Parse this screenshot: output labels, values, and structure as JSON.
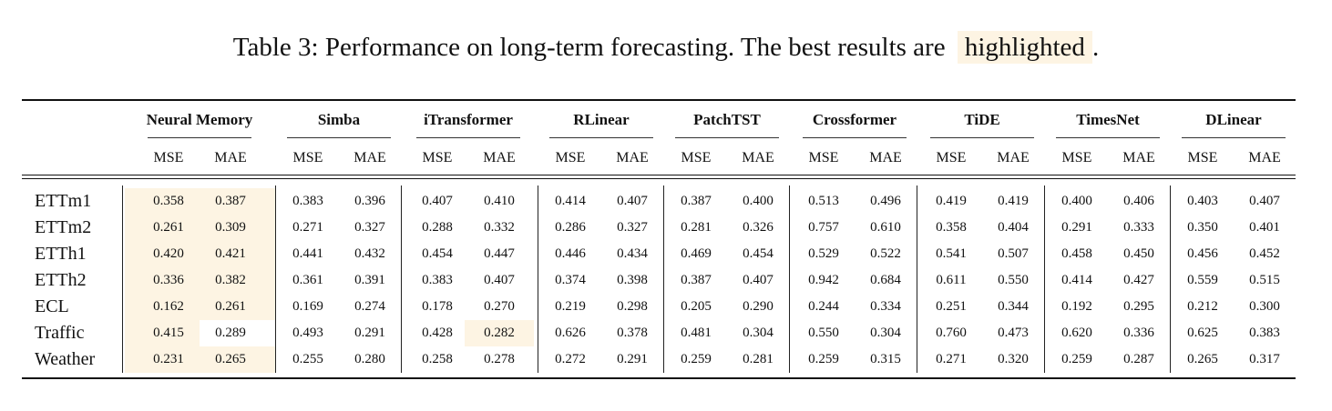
{
  "caption": {
    "text": "Table 3: Performance on long-term forecasting. The best results are",
    "highlight_word": "highlighted",
    "end": "."
  },
  "colors": {
    "highlight": "#fdf4e3",
    "text": "#111111"
  },
  "metrics": [
    "MSE",
    "MAE"
  ],
  "models": [
    "Neural Memory",
    "Simba",
    "iTransformer",
    "RLinear",
    "PatchTST",
    "Crossformer",
    "TiDE",
    "TimesNet",
    "DLinear"
  ],
  "datasets": [
    "ETTm1",
    "ETTm2",
    "ETTh1",
    "ETTh2",
    "ECL",
    "Traffic",
    "Weather"
  ],
  "values": [
    [
      "0.358",
      "0.387",
      "0.383",
      "0.396",
      "0.407",
      "0.410",
      "0.414",
      "0.407",
      "0.387",
      "0.400",
      "0.513",
      "0.496",
      "0.419",
      "0.419",
      "0.400",
      "0.406",
      "0.403",
      "0.407"
    ],
    [
      "0.261",
      "0.309",
      "0.271",
      "0.327",
      "0.288",
      "0.332",
      "0.286",
      "0.327",
      "0.281",
      "0.326",
      "0.757",
      "0.610",
      "0.358",
      "0.404",
      "0.291",
      "0.333",
      "0.350",
      "0.401"
    ],
    [
      "0.420",
      "0.421",
      "0.441",
      "0.432",
      "0.454",
      "0.447",
      "0.446",
      "0.434",
      "0.469",
      "0.454",
      "0.529",
      "0.522",
      "0.541",
      "0.507",
      "0.458",
      "0.450",
      "0.456",
      "0.452"
    ],
    [
      "0.336",
      "0.382",
      "0.361",
      "0.391",
      "0.383",
      "0.407",
      "0.374",
      "0.398",
      "0.387",
      "0.407",
      "0.942",
      "0.684",
      "0.611",
      "0.550",
      "0.414",
      "0.427",
      "0.559",
      "0.515"
    ],
    [
      "0.162",
      "0.261",
      "0.169",
      "0.274",
      "0.178",
      "0.270",
      "0.219",
      "0.298",
      "0.205",
      "0.290",
      "0.244",
      "0.334",
      "0.251",
      "0.344",
      "0.192",
      "0.295",
      "0.212",
      "0.300"
    ],
    [
      "0.415",
      "0.289",
      "0.493",
      "0.291",
      "0.428",
      "0.282",
      "0.626",
      "0.378",
      "0.481",
      "0.304",
      "0.550",
      "0.304",
      "0.760",
      "0.473",
      "0.620",
      "0.336",
      "0.625",
      "0.383"
    ],
    [
      "0.231",
      "0.265",
      "0.255",
      "0.280",
      "0.258",
      "0.278",
      "0.272",
      "0.291",
      "0.259",
      "0.281",
      "0.259",
      "0.315",
      "0.271",
      "0.320",
      "0.259",
      "0.287",
      "0.265",
      "0.317"
    ]
  ],
  "best_cells": [
    [
      0,
      0
    ],
    [
      0,
      1
    ],
    [
      1,
      0
    ],
    [
      1,
      1
    ],
    [
      2,
      0
    ],
    [
      2,
      1
    ],
    [
      3,
      0
    ],
    [
      3,
      1
    ],
    [
      4,
      0
    ],
    [
      4,
      1
    ],
    [
      5,
      0
    ],
    [
      5,
      5
    ],
    [
      6,
      0
    ],
    [
      6,
      1
    ]
  ]
}
